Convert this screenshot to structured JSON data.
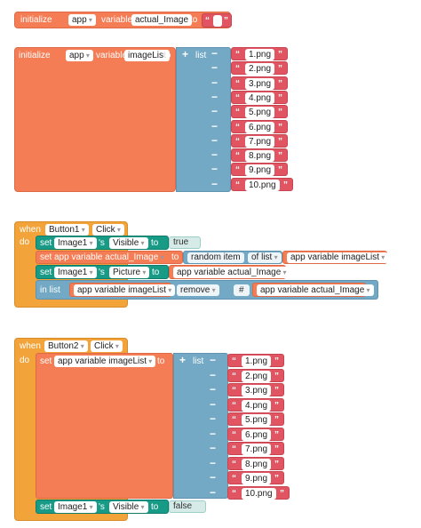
{
  "block1": {
    "initialize_label": "initialize",
    "scope": "app",
    "variable_label": "variable",
    "var_name": "actual_Image",
    "to_label": "to",
    "open_quote": "“",
    "close_quote": "”"
  },
  "block2": {
    "initialize_label": "initialize",
    "scope": "app",
    "variable_label": "variable",
    "var_name": "imageList",
    "to_label": "to",
    "list_label": "list",
    "items": [
      "1.png",
      "2.png",
      "3.png",
      "4.png",
      "5.png",
      "6.png",
      "7.png",
      "8.png",
      "9.png",
      "10.png"
    ]
  },
  "block3": {
    "when_label": "when",
    "component": "Button1",
    "event": "Click",
    "do_label": "do",
    "row1": {
      "set_label": "set",
      "component": "Image1",
      "possessive": "'s",
      "property": "Visible",
      "to_label": "to",
      "value": "true"
    },
    "row2": {
      "set_label": "set",
      "var_ref": "app variable actual_Image",
      "to_label": "to",
      "random_item": "random item",
      "of_list": "of list",
      "list_ref": "app variable imageList"
    },
    "row3": {
      "set_label": "set",
      "component": "Image1",
      "possessive": "'s",
      "property": "Picture",
      "to_label": "to",
      "value_ref": "app variable actual_Image"
    },
    "row4": {
      "in_list": "in list",
      "list_ref": "app variable imageList",
      "action": "remove",
      "hash": "#",
      "value_ref": "app variable actual_Image"
    }
  },
  "block4": {
    "when_label": "when",
    "component": "Button2",
    "event": "Click",
    "do_label": "do",
    "row1": {
      "set_label": "set",
      "var_ref": "app variable imageList",
      "to_label": "to",
      "list_label": "list",
      "items": [
        "1.png",
        "2.png",
        "3.png",
        "4.png",
        "5.png",
        "6.png",
        "7.png",
        "8.png",
        "9.png",
        "10.png"
      ]
    },
    "row2": {
      "set_label": "set",
      "component": "Image1",
      "possessive": "'s",
      "property": "Visible",
      "to_label": "to",
      "value": "false"
    }
  },
  "colors": {
    "variable_block": "#f57d55",
    "list_block": "#73a9c5",
    "text_block": "#e05561",
    "component_block": "#179a86",
    "event_block": "#f2a43a"
  }
}
